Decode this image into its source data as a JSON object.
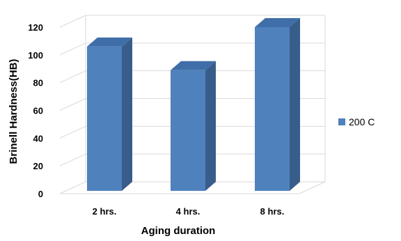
{
  "chart_data": {
    "type": "bar",
    "style": "3d-column",
    "categories": [
      "2 hrs.",
      "4 hrs.",
      "8 hrs."
    ],
    "series": [
      {
        "name": "200 C",
        "values": [
          106,
          89,
          120
        ]
      }
    ],
    "xlabel": "Aging duration",
    "ylabel": "Brinell Hardness(HB)",
    "ylim": [
      0,
      120
    ],
    "yticks": [
      0,
      20,
      40,
      60,
      80,
      100,
      120
    ],
    "grid": true,
    "legend_position": "right",
    "colors": {
      "bar_front": "#4f81bd",
      "bar_side": "#385d8a",
      "bar_top": "#3f6ea8",
      "grid": "#d9d9d9"
    }
  }
}
